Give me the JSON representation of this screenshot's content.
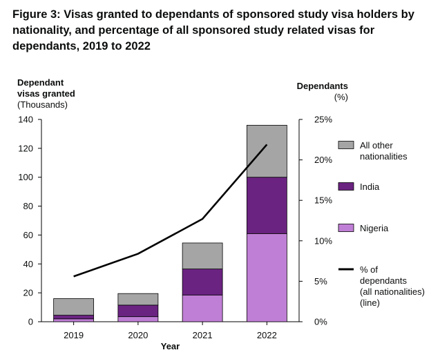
{
  "title": "Figure 3: Visas granted to dependants of sponsored study visa holders by nationality, and percentage of all sponsored study related visas for dependants, 2019 to 2022",
  "left_axis_title": {
    "line1": "Dependant",
    "line2": "visas granted",
    "line3": "(Thousands)"
  },
  "right_axis_title": {
    "line1": "Dependants",
    "line2": "(%)"
  },
  "colors": {
    "all_other": "#a5a5a6",
    "india": "#6b2381",
    "nigeria": "#c07fd6",
    "line": "#000000"
  },
  "chart_data": {
    "type": "bar",
    "stacked": true,
    "categories": [
      "2019",
      "2020",
      "2021",
      "2022"
    ],
    "xlabel": "Year",
    "ylabel": "Dependant visas granted (Thousands)",
    "ylim": [
      0,
      140
    ],
    "yticks": [
      "0",
      "20",
      "40",
      "60",
      "80",
      "100",
      "120",
      "140"
    ],
    "y2label": "Dependants (%)",
    "y2lim": [
      0,
      25
    ],
    "y2ticks": [
      "0%",
      "5%",
      "10%",
      "15%",
      "20%",
      "25%"
    ],
    "series": [
      {
        "name": "Nigeria",
        "values": [
          2,
          3.5,
          18.5,
          61
        ]
      },
      {
        "name": "India",
        "values": [
          2.5,
          8,
          18,
          39
        ]
      },
      {
        "name": "All other nationalities",
        "values": [
          11.5,
          8,
          18,
          36
        ]
      }
    ],
    "line_series": {
      "name": "% of dependants (all nationalities) (line)",
      "values": [
        5.6,
        8.4,
        12.7,
        21.9
      ]
    },
    "legend": [
      {
        "lines": [
          "All other",
          "nationalities"
        ],
        "series": "All other nationalities"
      },
      {
        "lines": [
          "India"
        ],
        "series": "India"
      },
      {
        "lines": [
          "Nigeria"
        ],
        "series": "Nigeria"
      },
      {
        "lines": [
          "% of",
          "dependants",
          "(all nationalities)",
          "(line)"
        ],
        "series": "% of dependants (all nationalities) (line)"
      }
    ],
    "legend_position": "right",
    "grid": false
  }
}
